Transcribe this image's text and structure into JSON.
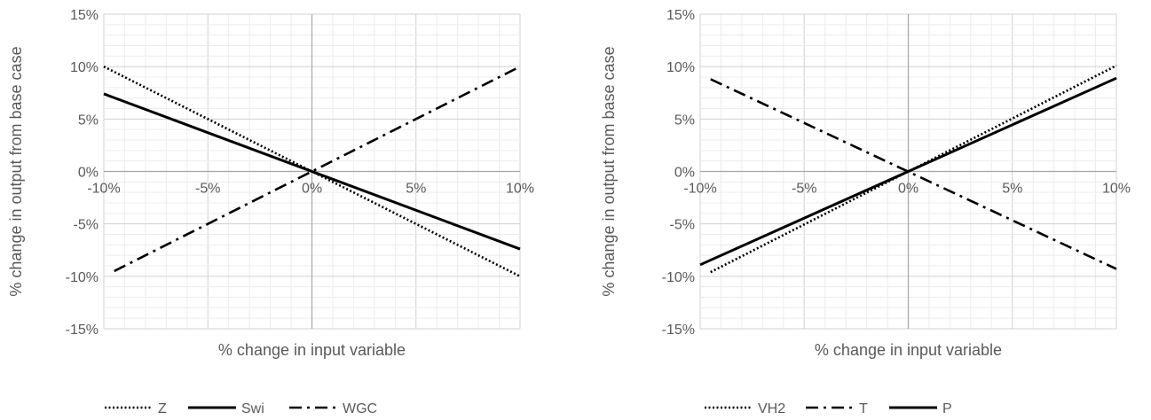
{
  "chart_data": [
    {
      "type": "line",
      "xlabel": "% change in input variable",
      "ylabel": "% change in output from base case",
      "xlim": [
        -10,
        10
      ],
      "ylim": [
        -15,
        15
      ],
      "x_ticks": [
        "-10%",
        "-5%",
        "0%",
        "5%",
        "10%"
      ],
      "y_ticks": [
        "15%",
        "10%",
        "5%",
        "0%",
        "-5%",
        "-10%",
        "-15%"
      ],
      "grid": true,
      "legend_position": "bottom",
      "series": [
        {
          "name": "Z",
          "style": "dotted",
          "color": "#000000",
          "x": [
            -10,
            10
          ],
          "y": [
            10,
            -10
          ]
        },
        {
          "name": "Swi",
          "style": "solid",
          "color": "#000000",
          "x": [
            -10,
            10
          ],
          "y": [
            7.4,
            -7.4
          ]
        },
        {
          "name": "WGC",
          "style": "dashdot",
          "color": "#000000",
          "x": [
            -9.5,
            10
          ],
          "y": [
            -9.5,
            10
          ]
        }
      ]
    },
    {
      "type": "line",
      "xlabel": "% change in input variable",
      "ylabel": "% change in output from base case",
      "xlim": [
        -10,
        10
      ],
      "ylim": [
        -15,
        15
      ],
      "x_ticks": [
        "-10%",
        "-5%",
        "0%",
        "5%",
        "10%"
      ],
      "y_ticks": [
        "15%",
        "10%",
        "5%",
        "0%",
        "-5%",
        "-10%",
        "-15%"
      ],
      "grid": true,
      "legend_position": "bottom",
      "series": [
        {
          "name": "VH2",
          "style": "dotted",
          "color": "#000000",
          "x": [
            -9.5,
            10
          ],
          "y": [
            -9.6,
            10.1
          ]
        },
        {
          "name": "T",
          "style": "dashdot",
          "color": "#000000",
          "x": [
            -9.5,
            10
          ],
          "y": [
            8.8,
            -9.3
          ]
        },
        {
          "name": "P",
          "style": "solid",
          "color": "#000000",
          "x": [
            -10,
            10
          ],
          "y": [
            -8.9,
            8.9
          ]
        }
      ]
    }
  ]
}
